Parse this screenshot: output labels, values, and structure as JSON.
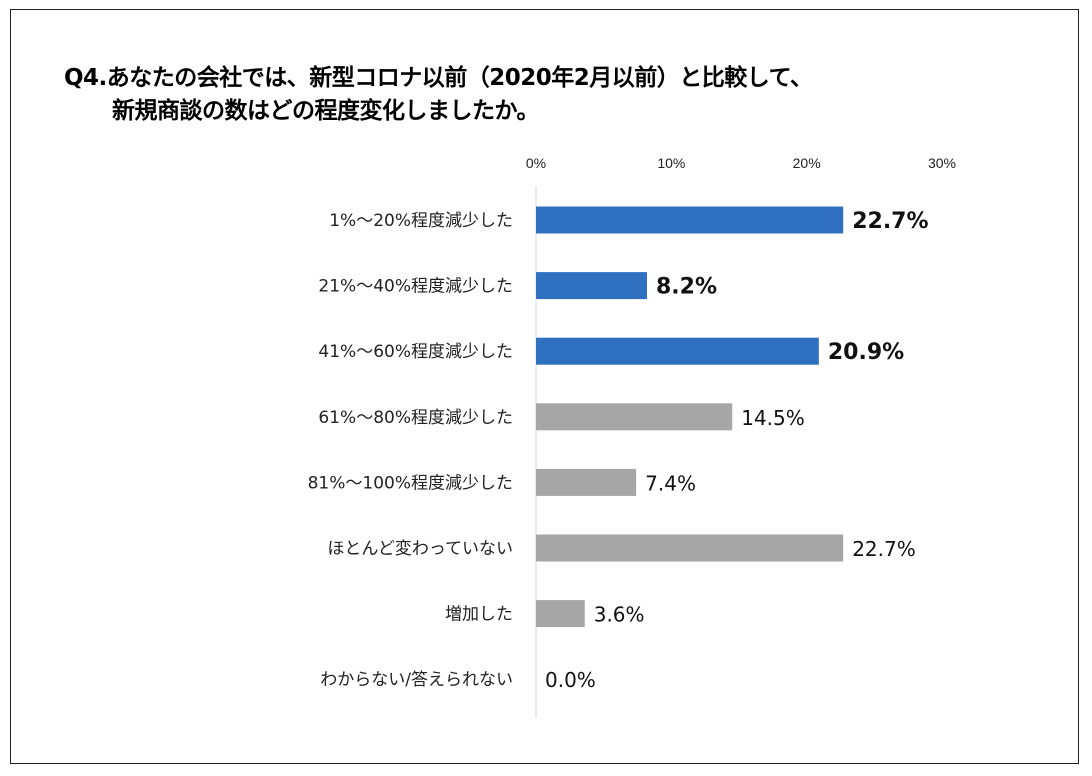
{
  "title": {
    "line1": "Q4.あなたの会社では、新型コロナ以前（2020年2月以前）と比較して、",
    "line2": "新規商談の数はどの程度変化しましたか。"
  },
  "chart_data": {
    "type": "bar",
    "orientation": "horizontal",
    "categories": [
      "1%～20%程度減少した",
      "21%～40%程度減少した",
      "41%～60%程度減少した",
      "61%～80%程度減少した",
      "81%～100%程度減少した",
      "ほとんど変わっていない",
      "増加した",
      "わからない/答えられない"
    ],
    "values": [
      22.7,
      8.2,
      20.9,
      14.5,
      7.4,
      22.7,
      3.6,
      0.0
    ],
    "value_labels": [
      "22.7%",
      "8.2%",
      "20.9%",
      "14.5%",
      "7.4%",
      "22.7%",
      "3.6%",
      "0.0%"
    ],
    "highlighted": [
      true,
      true,
      true,
      false,
      false,
      false,
      false,
      false
    ],
    "xlim": [
      0,
      30
    ],
    "ticks": [
      0,
      10,
      20,
      30
    ],
    "tick_labels": [
      "0%",
      "10%",
      "20%",
      "30%"
    ],
    "axis_position": "top",
    "grid": false,
    "colors": {
      "highlight": "#2E6FBF",
      "normal": "#A6A6A6",
      "axis": "#D9D9D9"
    }
  }
}
